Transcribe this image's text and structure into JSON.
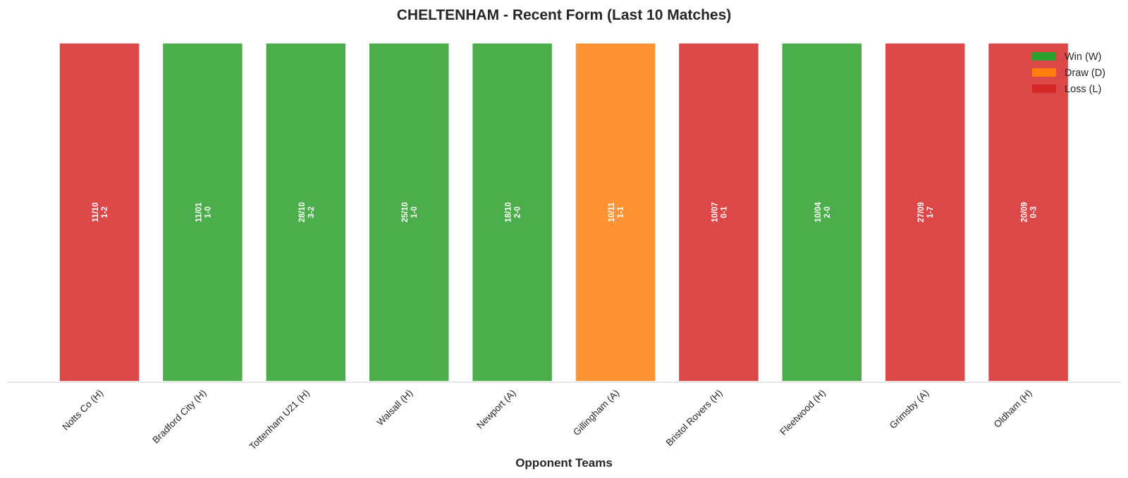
{
  "chart_data": {
    "type": "bar",
    "title": "CHELTENHAM - Recent Form (Last 10 Matches)",
    "xlabel": "Opponent Teams",
    "ylabel": "",
    "ylim": [
      0,
      1
    ],
    "grid": false,
    "legend_position": "top-right",
    "categories": [
      "Notts Co (H)",
      "Bradford City (H)",
      "Tottenham U21 (H)",
      "Walsall (H)",
      "Newport (A)",
      "Gillingham (A)",
      "Bristol Rovers (H)",
      "Fleetwood (H)",
      "Grimsby (A)",
      "Oldham (H)"
    ],
    "values": [
      1,
      1,
      1,
      1,
      1,
      1,
      1,
      1,
      1,
      1
    ],
    "results": [
      "L",
      "W",
      "W",
      "W",
      "W",
      "D",
      "L",
      "W",
      "L",
      "L"
    ],
    "dates": [
      "11/10",
      "11/01",
      "28/10",
      "25/10",
      "18/10",
      "10/11",
      "10/07",
      "10/04",
      "27/09",
      "20/09"
    ],
    "scores": [
      "1-2",
      "1-0",
      "3-2",
      "1-0",
      "2-0",
      "1-1",
      "0-1",
      "2-0",
      "1-7",
      "0-3"
    ],
    "legend": [
      {
        "key": "W",
        "label": "Win (W)",
        "color": "#2ca02c"
      },
      {
        "key": "D",
        "label": "Draw (D)",
        "color": "#ff7f0e"
      },
      {
        "key": "L",
        "label": "Loss (L)",
        "color": "#d62728"
      }
    ]
  }
}
